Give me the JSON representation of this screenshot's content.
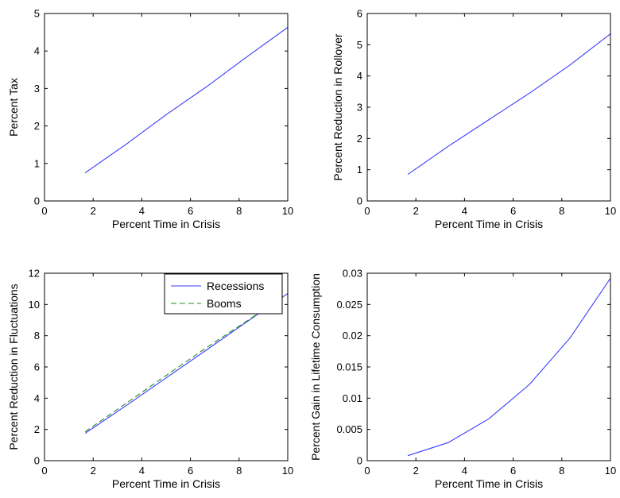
{
  "chart_data": [
    {
      "type": "line",
      "xlabel": "Percent Time in Crisis",
      "ylabel": "Percent Tax",
      "xlim": [
        0,
        10
      ],
      "ylim": [
        0,
        5
      ],
      "xticks": [
        0,
        2,
        4,
        6,
        8,
        10
      ],
      "yticks": [
        0,
        1,
        2,
        3,
        4,
        5
      ],
      "grid": false,
      "series": [
        {
          "color": "#3b3bff",
          "dash": "solid",
          "x": [
            1.67,
            3.33,
            5.0,
            6.67,
            8.33,
            10.0
          ],
          "y": [
            0.75,
            1.5,
            2.3,
            3.05,
            3.85,
            4.63
          ]
        }
      ]
    },
    {
      "type": "line",
      "xlabel": "Percent Time in Crisis",
      "ylabel": "Percent Reduction in Rollover",
      "xlim": [
        0,
        10
      ],
      "ylim": [
        0,
        6
      ],
      "xticks": [
        0,
        2,
        4,
        6,
        8,
        10
      ],
      "yticks": [
        0,
        1,
        2,
        3,
        4,
        5,
        6
      ],
      "grid": false,
      "series": [
        {
          "color": "#3b3bff",
          "dash": "solid",
          "x": [
            1.67,
            3.33,
            5.0,
            6.67,
            8.33,
            10.0
          ],
          "y": [
            0.85,
            1.75,
            2.6,
            3.45,
            4.35,
            5.35
          ]
        }
      ]
    },
    {
      "type": "line",
      "xlabel": "Percent Time in Crisis",
      "ylabel": "Percent Reduction in Fluctuations",
      "xlim": [
        0,
        10
      ],
      "ylim": [
        0,
        12
      ],
      "xticks": [
        0,
        2,
        4,
        6,
        8,
        10
      ],
      "yticks": [
        0,
        2,
        4,
        6,
        8,
        10,
        12
      ],
      "grid": false,
      "legend": "top-right",
      "series": [
        {
          "name": "Recessions",
          "color": "#3b3bff",
          "dash": "solid",
          "x": [
            1.67,
            3.33,
            5.0,
            6.67,
            8.33,
            10.0
          ],
          "y": [
            1.75,
            3.5,
            5.3,
            7.1,
            8.9,
            10.7
          ]
        },
        {
          "name": "Booms",
          "color": "#1f8f1f",
          "dash": "dashed",
          "x": [
            1.67,
            3.33,
            5.0,
            6.67,
            8.33,
            10.0
          ],
          "y": [
            1.85,
            3.65,
            5.45,
            7.25,
            8.95,
            10.7
          ]
        }
      ]
    },
    {
      "type": "line",
      "xlabel": "Percent Time in Crisis",
      "ylabel": "Percent Gain in Lifetime Consumption",
      "xlim": [
        0,
        10
      ],
      "ylim": [
        0,
        0.03
      ],
      "xticks": [
        0,
        2,
        4,
        6,
        8,
        10
      ],
      "yticks": [
        0,
        0.005,
        0.01,
        0.015,
        0.02,
        0.025,
        0.03
      ],
      "grid": false,
      "series": [
        {
          "color": "#3b3bff",
          "dash": "solid",
          "x": [
            1.67,
            3.33,
            5.0,
            6.67,
            8.33,
            10.0
          ],
          "y": [
            0.0008,
            0.0029,
            0.0067,
            0.0122,
            0.0196,
            0.0292
          ]
        }
      ]
    }
  ]
}
